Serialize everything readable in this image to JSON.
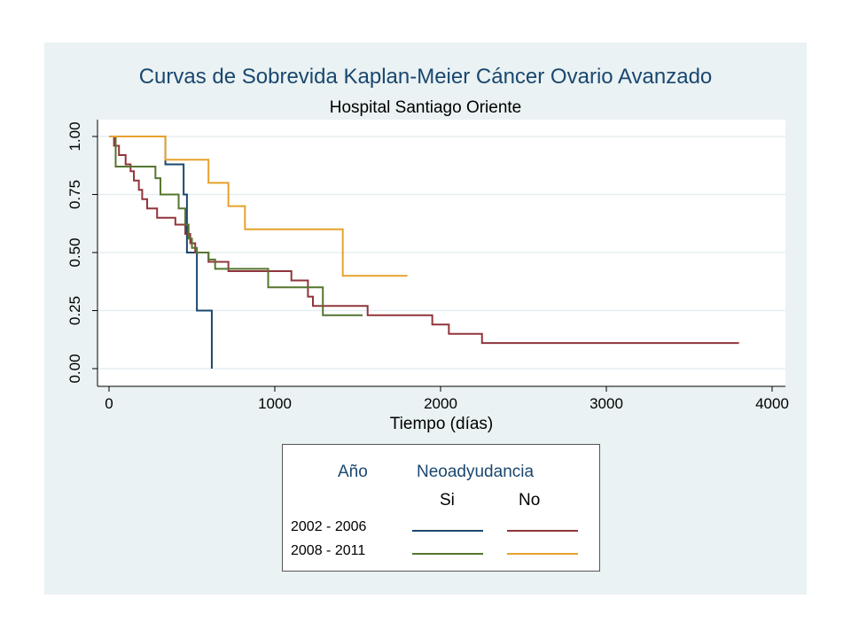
{
  "chart_data": {
    "type": "line",
    "step": true,
    "title": "Curvas de Sobrevida Kaplan-Meier Cáncer Ovario Avanzado",
    "subtitle": "Hospital Santiago Oriente",
    "xlabel": "Tiempo (días)",
    "ylabel": "",
    "xlim": [
      0,
      4000
    ],
    "ylim": [
      0,
      1
    ],
    "xticks": [
      0,
      1000,
      2000,
      3000,
      4000
    ],
    "yticks": [
      0,
      0.25,
      0.5,
      0.75,
      1
    ],
    "xtick_labels": [
      "0",
      "1000",
      "2000",
      "3000",
      "4000"
    ],
    "ytick_labels": [
      "0.00",
      "0.25",
      "0.50",
      "0.75",
      "1.00"
    ],
    "grid": true,
    "legend_position": "bottom-center",
    "series": [
      {
        "name": "2002 - 2006 Si",
        "color": "#1a476f",
        "x": [
          0,
          340,
          340,
          450,
          450,
          470,
          470,
          530,
          530,
          620,
          620
        ],
        "y": [
          1.0,
          1.0,
          0.88,
          0.88,
          0.75,
          0.75,
          0.5,
          0.5,
          0.25,
          0.25,
          0.0
        ]
      },
      {
        "name": "2002 - 2006 No",
        "color": "#90353b",
        "x": [
          0,
          30,
          60,
          100,
          130,
          150,
          180,
          200,
          230,
          290,
          400,
          460,
          490,
          520,
          600,
          720,
          1100,
          1200,
          1230,
          1560,
          1950,
          2050,
          2250,
          3800
        ],
        "y": [
          1.0,
          0.96,
          0.92,
          0.88,
          0.85,
          0.81,
          0.77,
          0.73,
          0.69,
          0.65,
          0.62,
          0.58,
          0.54,
          0.5,
          0.46,
          0.42,
          0.38,
          0.31,
          0.27,
          0.23,
          0.19,
          0.15,
          0.11,
          0.11
        ]
      },
      {
        "name": "2008 - 2011 Si",
        "color": "#55752f",
        "x": [
          0,
          40,
          280,
          310,
          420,
          460,
          480,
          500,
          530,
          600,
          640,
          960,
          1290,
          1530
        ],
        "y": [
          1.0,
          0.87,
          0.82,
          0.75,
          0.69,
          0.62,
          0.56,
          0.52,
          0.5,
          0.47,
          0.43,
          0.35,
          0.23,
          0.23
        ]
      },
      {
        "name": "2008 - 2011 No",
        "color": "#e8a12c",
        "x": [
          0,
          340,
          600,
          720,
          820,
          1410,
          1800
        ],
        "y": [
          1.0,
          0.9,
          0.8,
          0.7,
          0.6,
          0.4,
          0.4
        ]
      }
    ]
  },
  "legend": {
    "header_year": "Año",
    "header_group": "Neoadyudancia",
    "col_si": "Si",
    "col_no": "No",
    "rows": [
      {
        "label": "2002 - 2006",
        "si_color": "#1a476f",
        "no_color": "#90353b"
      },
      {
        "label": "2008 - 2011",
        "si_color": "#55752f",
        "no_color": "#e8a12c"
      }
    ]
  }
}
